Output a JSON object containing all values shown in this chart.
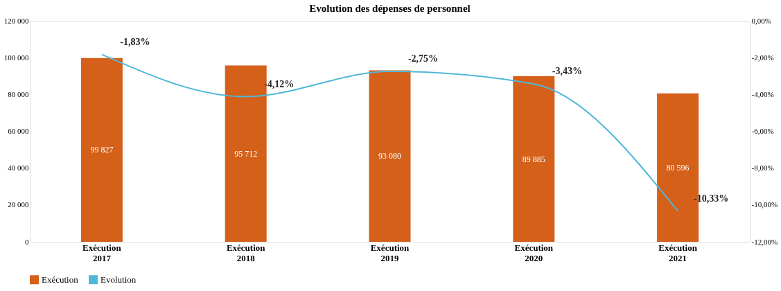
{
  "chart_data": {
    "type": "bar",
    "title": "Evolution  des dépenses de personnel",
    "categories": [
      "Exécution 2017",
      "Exécution 2018",
      "Exécution 2019",
      "Exécution 2020",
      "Exécution 2021"
    ],
    "series": [
      {
        "name": "Exécution",
        "color": "#d4601a",
        "values": [
          99827,
          95712,
          93080,
          89885,
          80596
        ],
        "value_labels": [
          "99 827",
          "95 712",
          "93 080",
          "89 885",
          "80 596"
        ]
      },
      {
        "name": "Evolution",
        "type": "line",
        "axis": "y2",
        "color": "#4fb8d8",
        "values": [
          -1.83,
          -4.12,
          -2.75,
          -3.43,
          -10.33
        ],
        "value_labels": [
          "-1,83%",
          "-4,12%",
          "-2,75%",
          "-3,43%",
          "-10,33%"
        ]
      }
    ],
    "ylim": [
      0,
      120000
    ],
    "yticks": [
      {
        "value": 0,
        "label": "0"
      },
      {
        "value": 20000,
        "label": "20 000"
      },
      {
        "value": 40000,
        "label": "40 000"
      },
      {
        "value": 60000,
        "label": "60 000"
      },
      {
        "value": 80000,
        "label": "80 000"
      },
      {
        "value": 100000,
        "label": "100 000"
      },
      {
        "value": 120000,
        "label": "120 000"
      }
    ],
    "y2lim": [
      -12,
      0
    ],
    "y2ticks": [
      {
        "value": 0,
        "label": "0,00%"
      },
      {
        "value": -2,
        "label": "-2,00%"
      },
      {
        "value": -4,
        "label": "-4,00%"
      },
      {
        "value": -6,
        "label": "-6,00%"
      },
      {
        "value": -8,
        "label": "-8,00%"
      },
      {
        "value": -10,
        "label": "-10,00%"
      },
      {
        "value": -12,
        "label": "-12,00%"
      }
    ],
    "legend": "bottom",
    "grid": false
  }
}
